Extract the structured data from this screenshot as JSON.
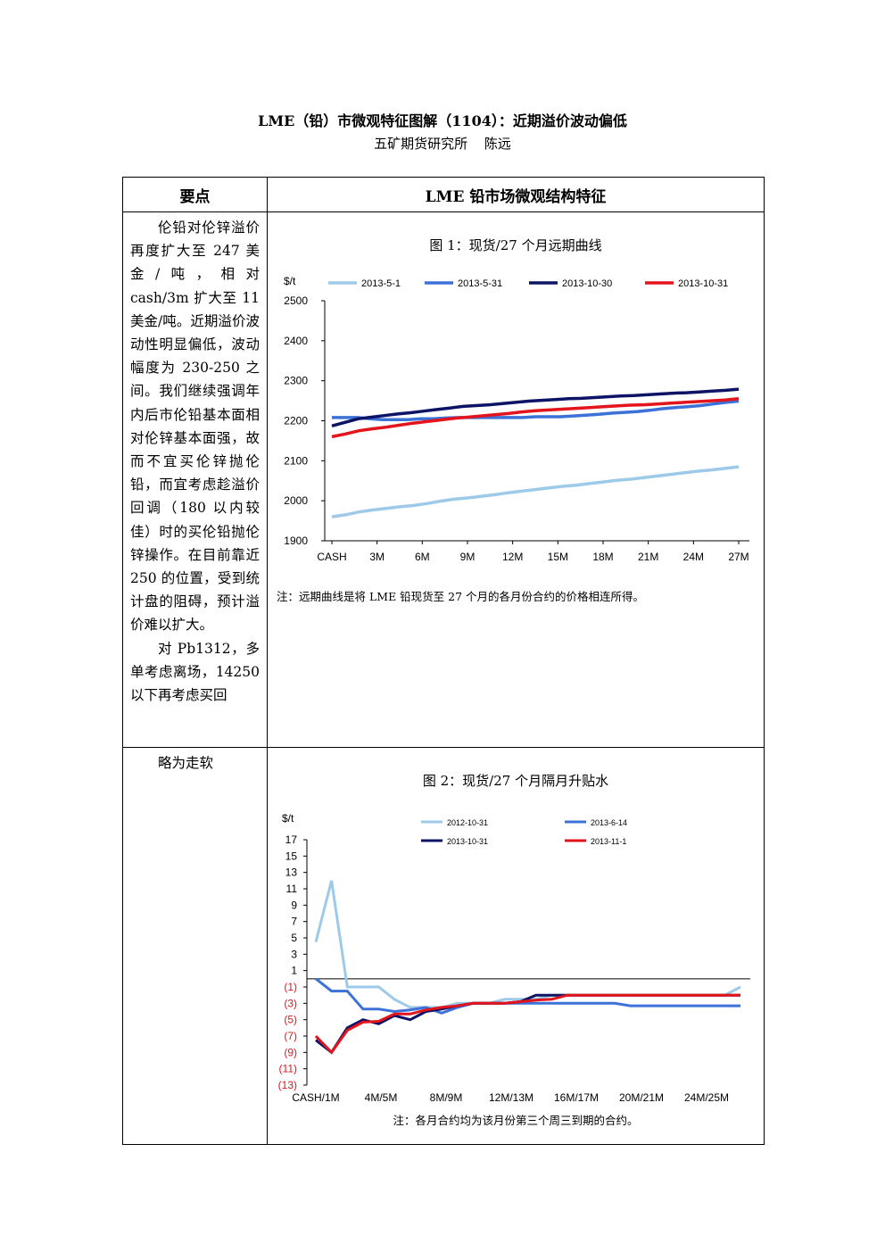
{
  "header": {
    "title": "LME（铅）市微观特征图解（1104）：近期溢价波动偏低",
    "subtitle": "五矿期货研究所 陈远"
  },
  "table": {
    "col1_header": "要点",
    "col2_header": "LME 铅市场微观结构特征",
    "para1": "伦铅对伦锌溢价再度扩大至 247 美金/吨，相对 cash/3m 扩大至 11 美金/吨。近期溢价波动性明显偏低，波动幅度为 230-250 之间。我们继续强调年内后市伦铅基本面相对伦锌基本面强，故而不宜买伦锌抛伦铅，而宜考虑趁溢价回调（180 以内较佳）时的买伦铅抛伦锌操作。在目前靠近 250 的位置，受到统计盘的阻碍，预计溢价难以扩大。",
    "para2": "对 Pb1312，多单考虑离场，14250 以下再考虑买回",
    "para3": "略为走软"
  },
  "figure1": {
    "title": "图 1：现货/27 个月远期曲线",
    "note": "注：远期曲线是将 LME 铅现货至 27 个月的各月份合约的价格相连所得。"
  },
  "figure2": {
    "title": "图 2：现货/27 个月隔月升贴水",
    "note": "注：各月合约均为该月份第三个周三到期的合约。"
  },
  "chart_data": [
    {
      "type": "line",
      "title": "图 1：现货/27 个月远期曲线",
      "ylabel": "$/t",
      "ylim": [
        1900,
        2500
      ],
      "yticks": [
        "1900",
        "2000",
        "2100",
        "2200",
        "2300",
        "2400",
        "2500"
      ],
      "x_tick_labels": [
        "CASH",
        "3M",
        "6M",
        "9M",
        "12M",
        "15M",
        "18M",
        "21M",
        "24M",
        "27M"
      ],
      "legend_position": "top",
      "series": [
        {
          "name": "2013-5-1",
          "color": "#9ecae9",
          "values": [
            1960,
            1965,
            1972,
            1977,
            1981,
            1985,
            1988,
            1993,
            1999,
            2004,
            2007,
            2011,
            2015,
            2020,
            2024,
            2028,
            2032,
            2036,
            2039,
            2043,
            2047,
            2051,
            2054,
            2058,
            2062,
            2066,
            2070,
            2074,
            2077,
            2081,
            2085
          ]
        },
        {
          "name": "2013-5-31",
          "color": "#3c72d8",
          "values": [
            2208,
            2208,
            2208,
            2205,
            2203,
            2203,
            2203,
            2205,
            2205,
            2207,
            2208,
            2208,
            2208,
            2208,
            2208,
            2208,
            2210,
            2210,
            2210,
            2212,
            2214,
            2216,
            2219,
            2221,
            2223,
            2226,
            2230,
            2233,
            2235,
            2238,
            2242,
            2246,
            2249
          ]
        },
        {
          "name": "2013-10-30",
          "color": "#0d1466",
          "values": [
            2187,
            2196,
            2205,
            2209,
            2213,
            2217,
            2220,
            2224,
            2228,
            2232,
            2236,
            2238,
            2240,
            2243,
            2246,
            2249,
            2251,
            2253,
            2255,
            2256,
            2258,
            2260,
            2262,
            2263,
            2265,
            2267,
            2269,
            2270,
            2272,
            2274,
            2276,
            2279
          ]
        },
        {
          "name": "2013-10-31",
          "color": "#e3141b",
          "values": [
            2160,
            2167,
            2175,
            2180,
            2184,
            2189,
            2194,
            2198,
            2202,
            2206,
            2209,
            2212,
            2215,
            2218,
            2222,
            2225,
            2227,
            2229,
            2231,
            2233,
            2235,
            2237,
            2239,
            2240,
            2242,
            2244,
            2246,
            2248,
            2250,
            2252,
            2255
          ]
        }
      ]
    },
    {
      "type": "line",
      "title": "图 2：现货/27 个月隔月升贴水",
      "ylabel": "$/t",
      "ylim": [
        -13,
        17
      ],
      "yticks": [
        "(13)",
        "(11)",
        "(9)",
        "(7)",
        "(5)",
        "(3)",
        "(1)",
        "1",
        "3",
        "5",
        "7",
        "9",
        "11",
        "13",
        "15",
        "17"
      ],
      "x_tick_labels": [
        "CASH/1M",
        "4M/5M",
        "8M/9M",
        "12M/13M",
        "16M/17M",
        "20M/21M",
        "24M/25M"
      ],
      "legend_position": "top",
      "series": [
        {
          "name": "2012-10-31",
          "color": "#9ecae9",
          "values": [
            4.5,
            12,
            -1,
            -1,
            -1,
            -2.5,
            -3.5,
            -3.5,
            -3.5,
            -3,
            -3,
            -3,
            -2.5,
            -2.5,
            -2.5,
            -2,
            -2,
            -2,
            -2,
            -2,
            -2,
            -2,
            -2,
            -2,
            -2,
            -2,
            -2,
            -1
          ]
        },
        {
          "name": "2013-6-14",
          "color": "#3c72d8",
          "values": [
            0,
            -1.5,
            -1.5,
            -3.7,
            -3.7,
            -4,
            -3.8,
            -3.5,
            -4.2,
            -3.5,
            -3,
            -3,
            -3,
            -3,
            -3,
            -3,
            -3,
            -3,
            -3,
            -3,
            -3.3,
            -3.3,
            -3.3,
            -3.3,
            -3.3,
            -3.3,
            -3.3,
            -3.3
          ]
        },
        {
          "name": "2013-10-31",
          "color": "#0d1466",
          "values": [
            -7.5,
            -9,
            -6,
            -5,
            -5.5,
            -4.5,
            -5,
            -4,
            -3.7,
            -3.3,
            -3,
            -3,
            -3,
            -2.8,
            -2,
            -2,
            -2,
            -2,
            -2,
            -2,
            -2,
            -2,
            -2,
            -2,
            -2,
            -2,
            -2,
            -2
          ]
        },
        {
          "name": "2013-11-1",
          "color": "#e3141b",
          "values": [
            -7,
            -9,
            -6.3,
            -5.3,
            -5.2,
            -4.3,
            -4.3,
            -3.8,
            -3.5,
            -3.3,
            -3,
            -3,
            -3,
            -2.8,
            -2.6,
            -2.5,
            -2,
            -2,
            -2,
            -2,
            -2,
            -2,
            -2,
            -2,
            -2,
            -2,
            -2,
            -2
          ]
        }
      ]
    }
  ]
}
